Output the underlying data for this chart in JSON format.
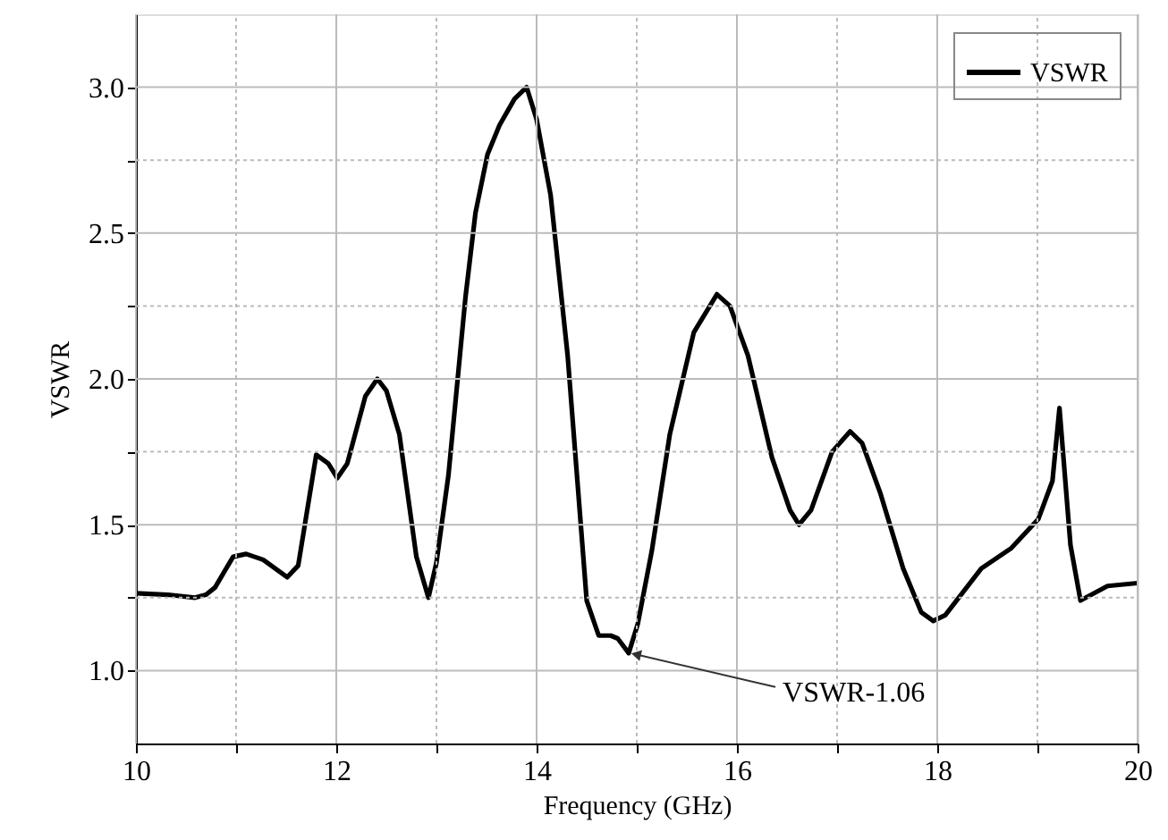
{
  "chart_data": {
    "type": "line",
    "xlabel": "Frequency (GHz)",
    "ylabel": "VSWR",
    "xlim": [
      10,
      20
    ],
    "ylim": [
      0.75,
      3.25
    ],
    "xticks": [
      10,
      {
        "value": 11,
        "label": null
      },
      12,
      {
        "value": 13,
        "label": null
      },
      14,
      {
        "value": 15,
        "label": null
      },
      16,
      {
        "value": 17,
        "label": null
      },
      18,
      {
        "value": 19,
        "label": null
      },
      20
    ],
    "yticks": [
      {
        "value": 1.0,
        "label": "1.0"
      },
      {
        "value": 1.25,
        "label": null
      },
      {
        "value": 1.5,
        "label": "1.5"
      },
      {
        "value": 1.75,
        "label": null
      },
      {
        "value": 2.0,
        "label": "2.0"
      },
      {
        "value": 2.25,
        "label": null
      },
      {
        "value": 2.5,
        "label": "2.5"
      },
      {
        "value": 2.75,
        "label": null
      },
      {
        "value": 3.0,
        "label": "3.0"
      }
    ],
    "grid": true,
    "legend": "top right",
    "line_style": "solid",
    "x": [
      10,
      10.32,
      10.59,
      10.7,
      10.79,
      10.97,
      11.1,
      11.27,
      11.51,
      11.62,
      11.8,
      11.92,
      12.01,
      12.11,
      12.29,
      12.41,
      12.5,
      12.63,
      12.8,
      12.92,
      13.0,
      13.12,
      13.29,
      13.39,
      13.51,
      13.63,
      13.78,
      13.9,
      14.0,
      14.14,
      14.31,
      14.5,
      14.62,
      14.74,
      14.81,
      14.92,
      15.01,
      15.15,
      15.33,
      15.57,
      15.8,
      15.93,
      16.11,
      16.35,
      16.53,
      16.62,
      16.74,
      16.95,
      17.13,
      17.25,
      17.43,
      17.66,
      17.84,
      17.96,
      18.08,
      18.44,
      18.74,
      19.01,
      19.15,
      19.22,
      19.33,
      19.43,
      19.7,
      20
    ],
    "series": [
      {
        "name": "VSWR",
        "color": "#000000",
        "values": [
          1.265,
          1.26,
          1.25,
          1.26,
          1.285,
          1.39,
          1.4,
          1.38,
          1.32,
          1.36,
          1.74,
          1.71,
          1.66,
          1.71,
          1.94,
          2.0,
          1.96,
          1.81,
          1.39,
          1.25,
          1.37,
          1.67,
          2.28,
          2.57,
          2.77,
          2.87,
          2.96,
          3.0,
          2.89,
          2.63,
          2.08,
          1.24,
          1.12,
          1.12,
          1.11,
          1.06,
          1.16,
          1.41,
          1.81,
          2.16,
          2.29,
          2.25,
          2.08,
          1.73,
          1.55,
          1.5,
          1.55,
          1.75,
          1.82,
          1.78,
          1.61,
          1.35,
          1.2,
          1.17,
          1.19,
          1.35,
          1.42,
          1.52,
          1.65,
          1.9,
          1.43,
          1.24,
          1.29,
          1.3
        ]
      }
    ],
    "annotations": [
      {
        "text": "VSWR-1.06",
        "x": 14.92,
        "y": 1.06
      }
    ]
  }
}
